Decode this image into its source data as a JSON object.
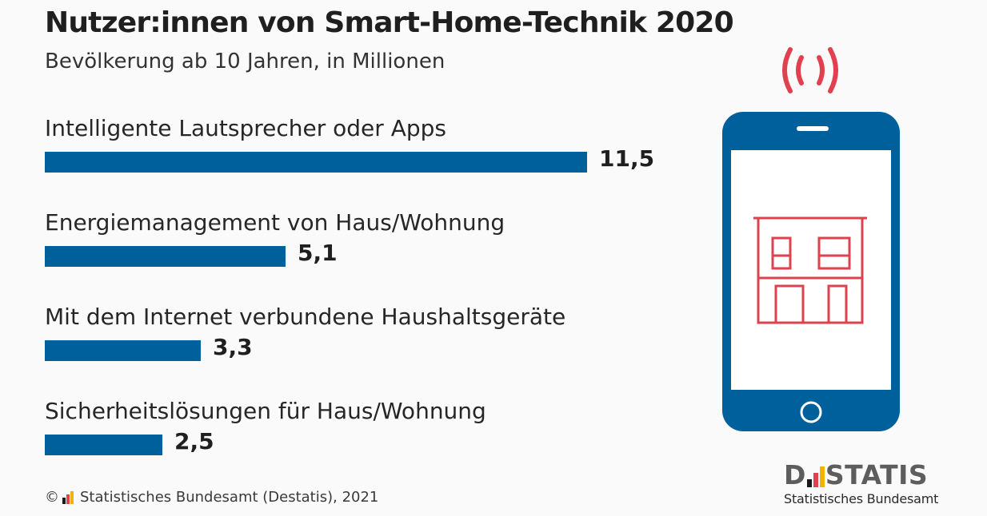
{
  "chart_data": {
    "type": "bar",
    "orientation": "horizontal",
    "title": "Nutzer:innen von Smart-Home-Technik 2020",
    "subtitle": "Bevölkerung ab 10 Jahren, in Millionen",
    "categories": [
      "Intelligente Lautsprecher oder Apps",
      "Energiemanagement von Haus/Wohnung",
      "Mit dem Internet verbundene Haushaltsgeräte",
      "Sicherheitslösungen für Haus/Wohnung"
    ],
    "values": [
      11.5,
      5.1,
      3.3,
      2.5
    ],
    "value_labels": [
      "11,5",
      "5,1",
      "3,3",
      "2,5"
    ],
    "xlim": [
      0,
      11.5
    ],
    "grid": false,
    "legend": "none"
  },
  "colors": {
    "bar": "#00609c",
    "phone": "#00609c",
    "accent": "#e0414f",
    "logo_grey": "#5d5d5d",
    "logo_black": "#1a1a1a",
    "logo_red": "#e0414f",
    "logo_gold": "#f0b400"
  },
  "icons": {
    "phone": "smartphone-icon",
    "signal": "signal-waves-icon",
    "house": "house-icon"
  },
  "footer": {
    "text": "Statistisches Bundesamt (Destatis), 2021",
    "copyright": "©"
  },
  "logo": {
    "part1": "D",
    "part2": "STATIS",
    "subline": "Statistisches Bundesamt"
  }
}
